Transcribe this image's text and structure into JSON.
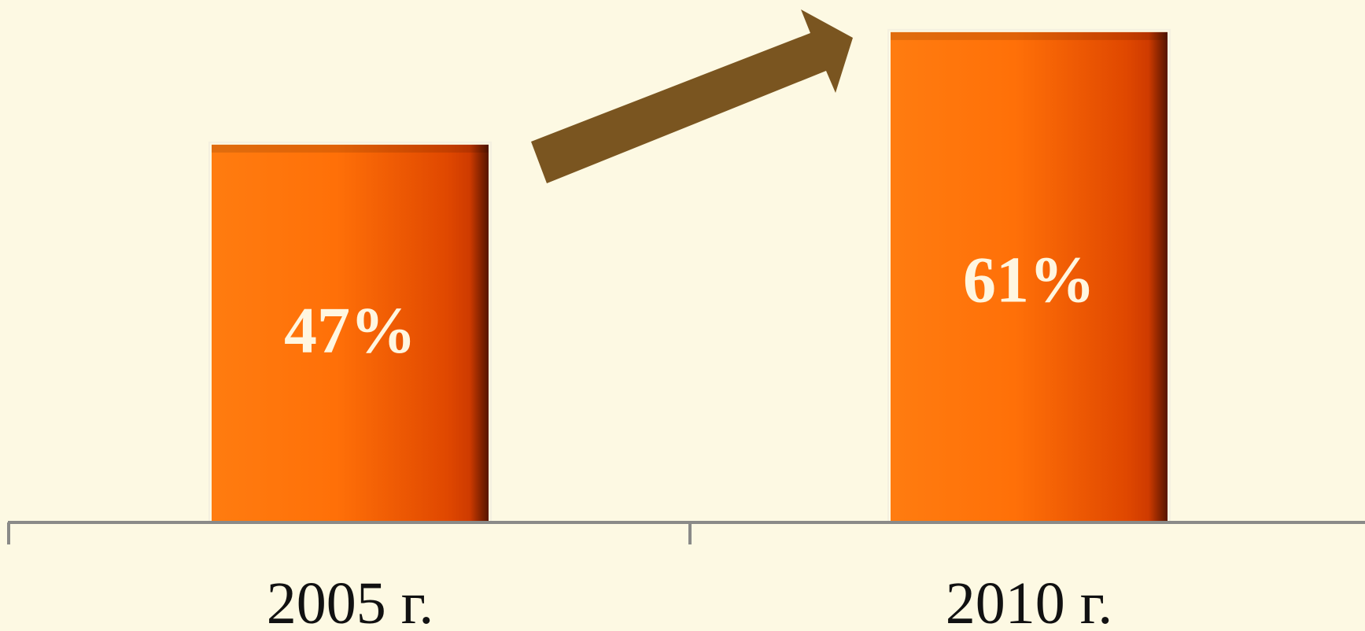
{
  "colors": {
    "background": "#fdf9e3",
    "bar_light": "#ff7a12",
    "bar_dark": "#d23a00",
    "arrow": "#7a5520",
    "axis": "#8a8a88"
  },
  "icons": {
    "trend": "up-right-arrow-icon"
  },
  "chart_data": {
    "type": "bar",
    "title": "",
    "xlabel": "",
    "ylabel": "",
    "categories": [
      "2005 г.",
      "2010 г."
    ],
    "values": [
      47,
      61
    ],
    "data_labels": [
      "47%",
      "61%"
    ],
    "ylim": [
      0,
      65
    ],
    "grid": false,
    "legend": "none"
  }
}
